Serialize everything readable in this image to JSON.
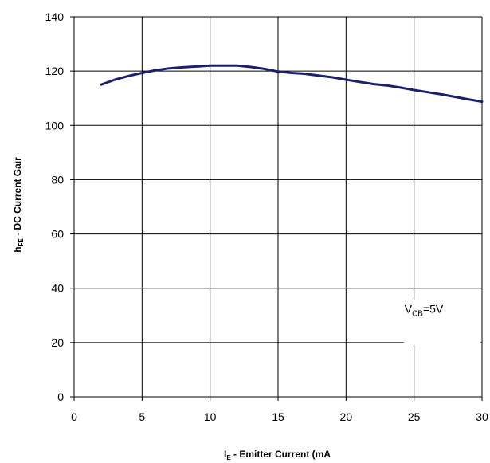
{
  "chart_data": {
    "type": "line",
    "title": "",
    "xlabel": {
      "main": "I",
      "sub": "E",
      "rest": " - Emitter Current (mA"
    },
    "ylabel": {
      "main": "h",
      "sub": "FE",
      "rest": " - DC Current Gair"
    },
    "xlim": [
      0,
      30
    ],
    "ylim": [
      0,
      140
    ],
    "xticks": [
      "0",
      "5",
      "10",
      "15",
      "20",
      "25",
      "30"
    ],
    "yticks": [
      "0",
      "20",
      "40",
      "60",
      "80",
      "100",
      "120",
      "140"
    ],
    "grid": true,
    "annotation": {
      "main": "V",
      "sub": "CB",
      "rest": "=5V",
      "x": 24.3,
      "y": 31
    },
    "series": [
      {
        "color": "#1a1f6e",
        "x": [
          2,
          3,
          4,
          5,
          6,
          7,
          8,
          9,
          10,
          11,
          12,
          13,
          14,
          15,
          16,
          17,
          18,
          19,
          20,
          21,
          22,
          23,
          24,
          25,
          26,
          27,
          28,
          29,
          30
        ],
        "y": [
          115,
          116.8,
          118.2,
          119.3,
          120.3,
          121,
          121.4,
          121.7,
          122,
          122,
          122,
          121.5,
          120.8,
          119.8,
          119.3,
          119,
          118.3,
          117.7,
          116.8,
          116,
          115.2,
          114.7,
          113.9,
          113,
          112.2,
          111.4,
          110.5,
          109.6,
          108.7
        ]
      }
    ]
  }
}
